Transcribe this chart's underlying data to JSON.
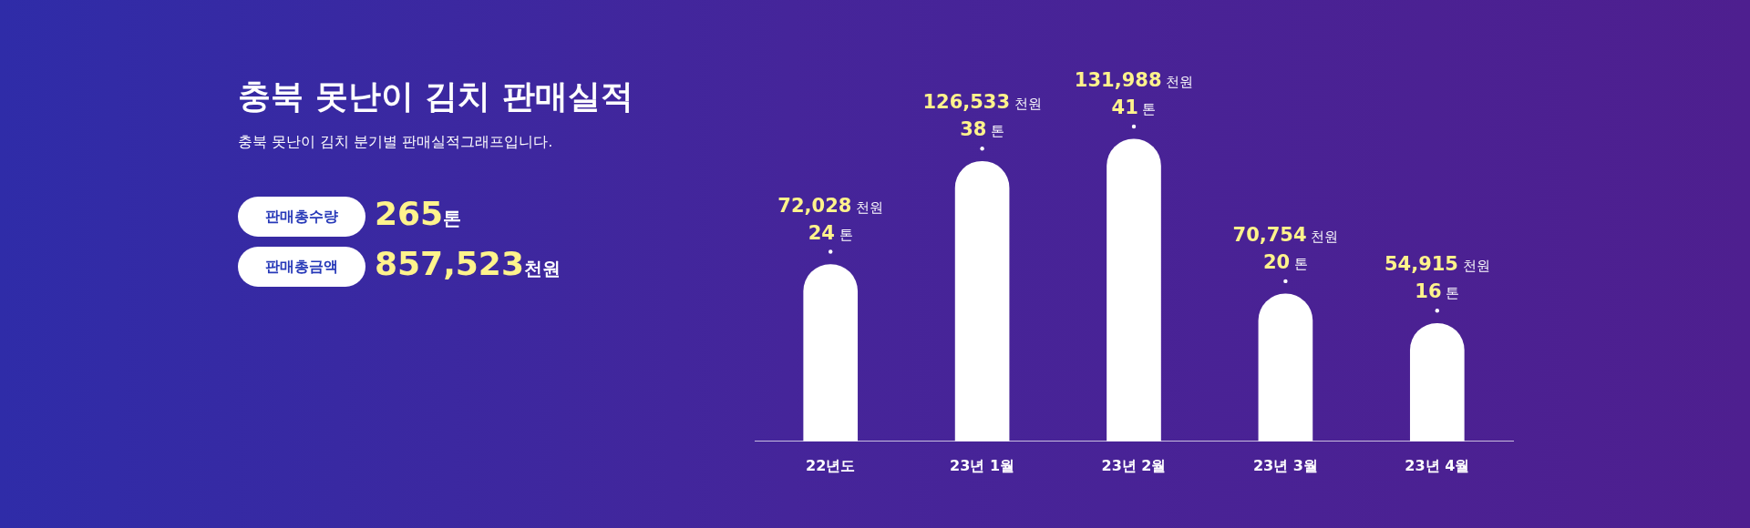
{
  "chart_data": {
    "type": "bar",
    "title": "충북 못난이 김치 판매실적",
    "subtitle": "충북 못난이 김치 분기별 판매실적그래프입니다.",
    "categories": [
      "22년도",
      "23년 1월",
      "23년 2월",
      "23년 3월",
      "23년 4월"
    ],
    "series": [
      {
        "color": "#ffffff",
        "values": [
          24,
          38,
          41,
          20,
          16
        ],
        "value_labels": [
          "24 톤",
          "38 톤",
          "41 톤",
          "20 톤",
          "16 톤"
        ]
      }
    ],
    "relative": false,
    "annotations": [
      {
        "text": "72,028 천원",
        "x": "22년도",
        "y": 24
      },
      {
        "text": "126,533 천원",
        "x": "23년 1월",
        "y": 38
      },
      {
        "text": "131,988 천원",
        "x": "23년 2월",
        "y": 41
      },
      {
        "text": "70,754 천원",
        "x": "23년 3월",
        "y": 20
      },
      {
        "text": "54,915 천원",
        "x": "23년 4월",
        "y": 16
      },
      "판매총수량",
      "265톤",
      "판매총금액",
      "857,523천원"
    ],
    "grid": false,
    "legend": false
  }
}
